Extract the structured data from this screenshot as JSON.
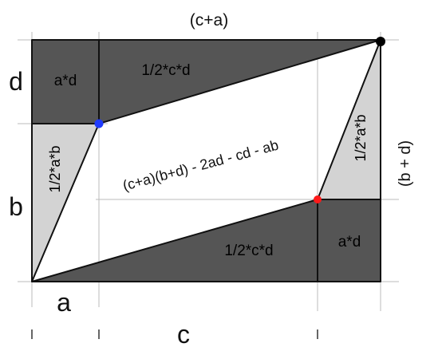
{
  "diagram": {
    "labels": {
      "top": "(c+a)",
      "right": "(b + d)",
      "left_d": "d",
      "left_b": "b",
      "bottom_a": "a",
      "bottom_c": "c",
      "rect_top_left": "a*d",
      "rect_bottom_right": "a*d",
      "tri_top": "1/2*c*d",
      "tri_bottom": "1/2*c*d",
      "tri_left": "1/2*a*b",
      "tri_right": "1/2*a*b",
      "center": "(c+a)(b+d) - 2ad - cd - ab"
    },
    "colors": {
      "dark_region": "#555555",
      "light_region": "#d3d3d3",
      "outline": "#111111",
      "guide_line": "#bbbbbb",
      "point_blue": "#1f3bff",
      "point_red": "#ff1a1a",
      "point_black": "#000000"
    }
  }
}
